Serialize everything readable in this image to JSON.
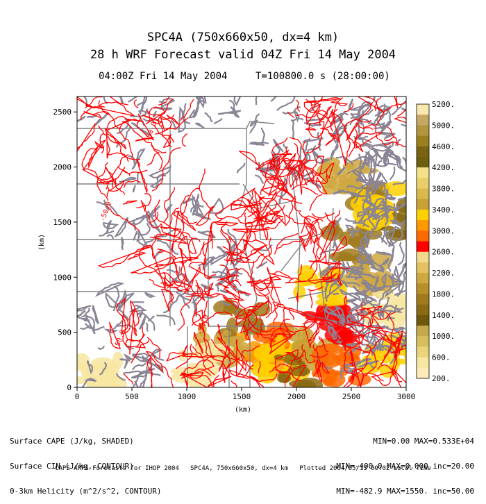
{
  "header": {
    "title_line1": "SPC4A (750x660x50, dx=4 km)",
    "title_line2": "28 h WRF Forecast valid 04Z Fri 14 May 2004",
    "time_left": "04:00Z Fri 14 May 2004",
    "time_right": "T=100800.0 s (28:00:00)"
  },
  "stats": {
    "left": [
      "Surface CAPE (J/kg, SHADED)",
      "Surface CIN (J/kg, CONTOUR)",
      "0-3km Helicity (m^2/s^2, CONTOUR)"
    ],
    "right": [
      "MIN=0.00 MAX=0.533E+04",
      "MIN=-400.0 MAX=0.000 inc=20.00",
      "MIN=-482.9 MAX=1550. inc=50.00"
    ]
  },
  "footer": "CAPS ARPS Forecasts for IHOP 2004   SPC4A, 750x660x50, dx=4 km   Plotted 2004/05/13 09:02 Local Time",
  "colors": {
    "cin_contour": "#8a8494",
    "helicity_contour": "#ff0000",
    "state_border": "#808080"
  },
  "chart_data": {
    "type": "heatmap",
    "xlabel": "(km)",
    "ylabel": "(km)",
    "xlim": [
      0,
      3000
    ],
    "ylim": [
      0,
      2640
    ],
    "x_ticks": [
      0,
      500,
      1000,
      1500,
      2000,
      2500,
      3000
    ],
    "y_ticks": [
      0,
      500,
      1000,
      1500,
      2000,
      2500
    ],
    "contour_label": "-50.0",
    "colorbar": {
      "labels": [
        "5200.",
        "5000.",
        "4600.",
        "4200.",
        "3800.",
        "3400.",
        "3000.",
        "2600.",
        "2200.",
        "1800.",
        "1400.",
        "1000.",
        "600.",
        "200."
      ],
      "colors": [
        "#f9e7b0",
        "#c6a865",
        "#b39540",
        "#9c7f1f",
        "#7a6414",
        "#6e5e10",
        "#f5e08a",
        "#e8cf6a",
        "#d9b84c",
        "#c9a235",
        "#ffd000",
        "#ff9900",
        "#ff6a00",
        "#ff0000",
        "#f2d88a",
        "#e3c060",
        "#cfa840",
        "#b98f28",
        "#a07a1c",
        "#8a6a12",
        "#6f570c",
        "#c4a94a",
        "#d8bf5e",
        "#e9d47c",
        "#f7e6a0",
        "#fdeab8"
      ]
    },
    "cape_cells": [
      {
        "x": 1750,
        "y": 400,
        "v": 3800
      },
      {
        "x": 1650,
        "y": 300,
        "v": 3400
      },
      {
        "x": 1850,
        "y": 250,
        "v": 3000
      },
      {
        "x": 2000,
        "y": 150,
        "v": 2600
      },
      {
        "x": 2100,
        "y": 350,
        "v": 2200
      },
      {
        "x": 2300,
        "y": 550,
        "v": 1800
      },
      {
        "x": 2200,
        "y": 900,
        "v": 1400
      },
      {
        "x": 2500,
        "y": 1300,
        "v": 1000
      },
      {
        "x": 2600,
        "y": 1700,
        "v": 1000
      },
      {
        "x": 2450,
        "y": 1900,
        "v": 600
      },
      {
        "x": 2700,
        "y": 1000,
        "v": 600
      },
      {
        "x": 2850,
        "y": 300,
        "v": 1400
      },
      {
        "x": 2900,
        "y": 1500,
        "v": 2600
      },
      {
        "x": 2750,
        "y": 1650,
        "v": 3000
      },
      {
        "x": 1500,
        "y": 600,
        "v": 1000
      },
      {
        "x": 1300,
        "y": 400,
        "v": 600
      },
      {
        "x": 1150,
        "y": 200,
        "v": 200
      },
      {
        "x": 200,
        "y": 100,
        "v": 200
      },
      {
        "x": 2400,
        "y": 200,
        "v": 4200
      },
      {
        "x": 2800,
        "y": 700,
        "v": 200
      }
    ]
  }
}
